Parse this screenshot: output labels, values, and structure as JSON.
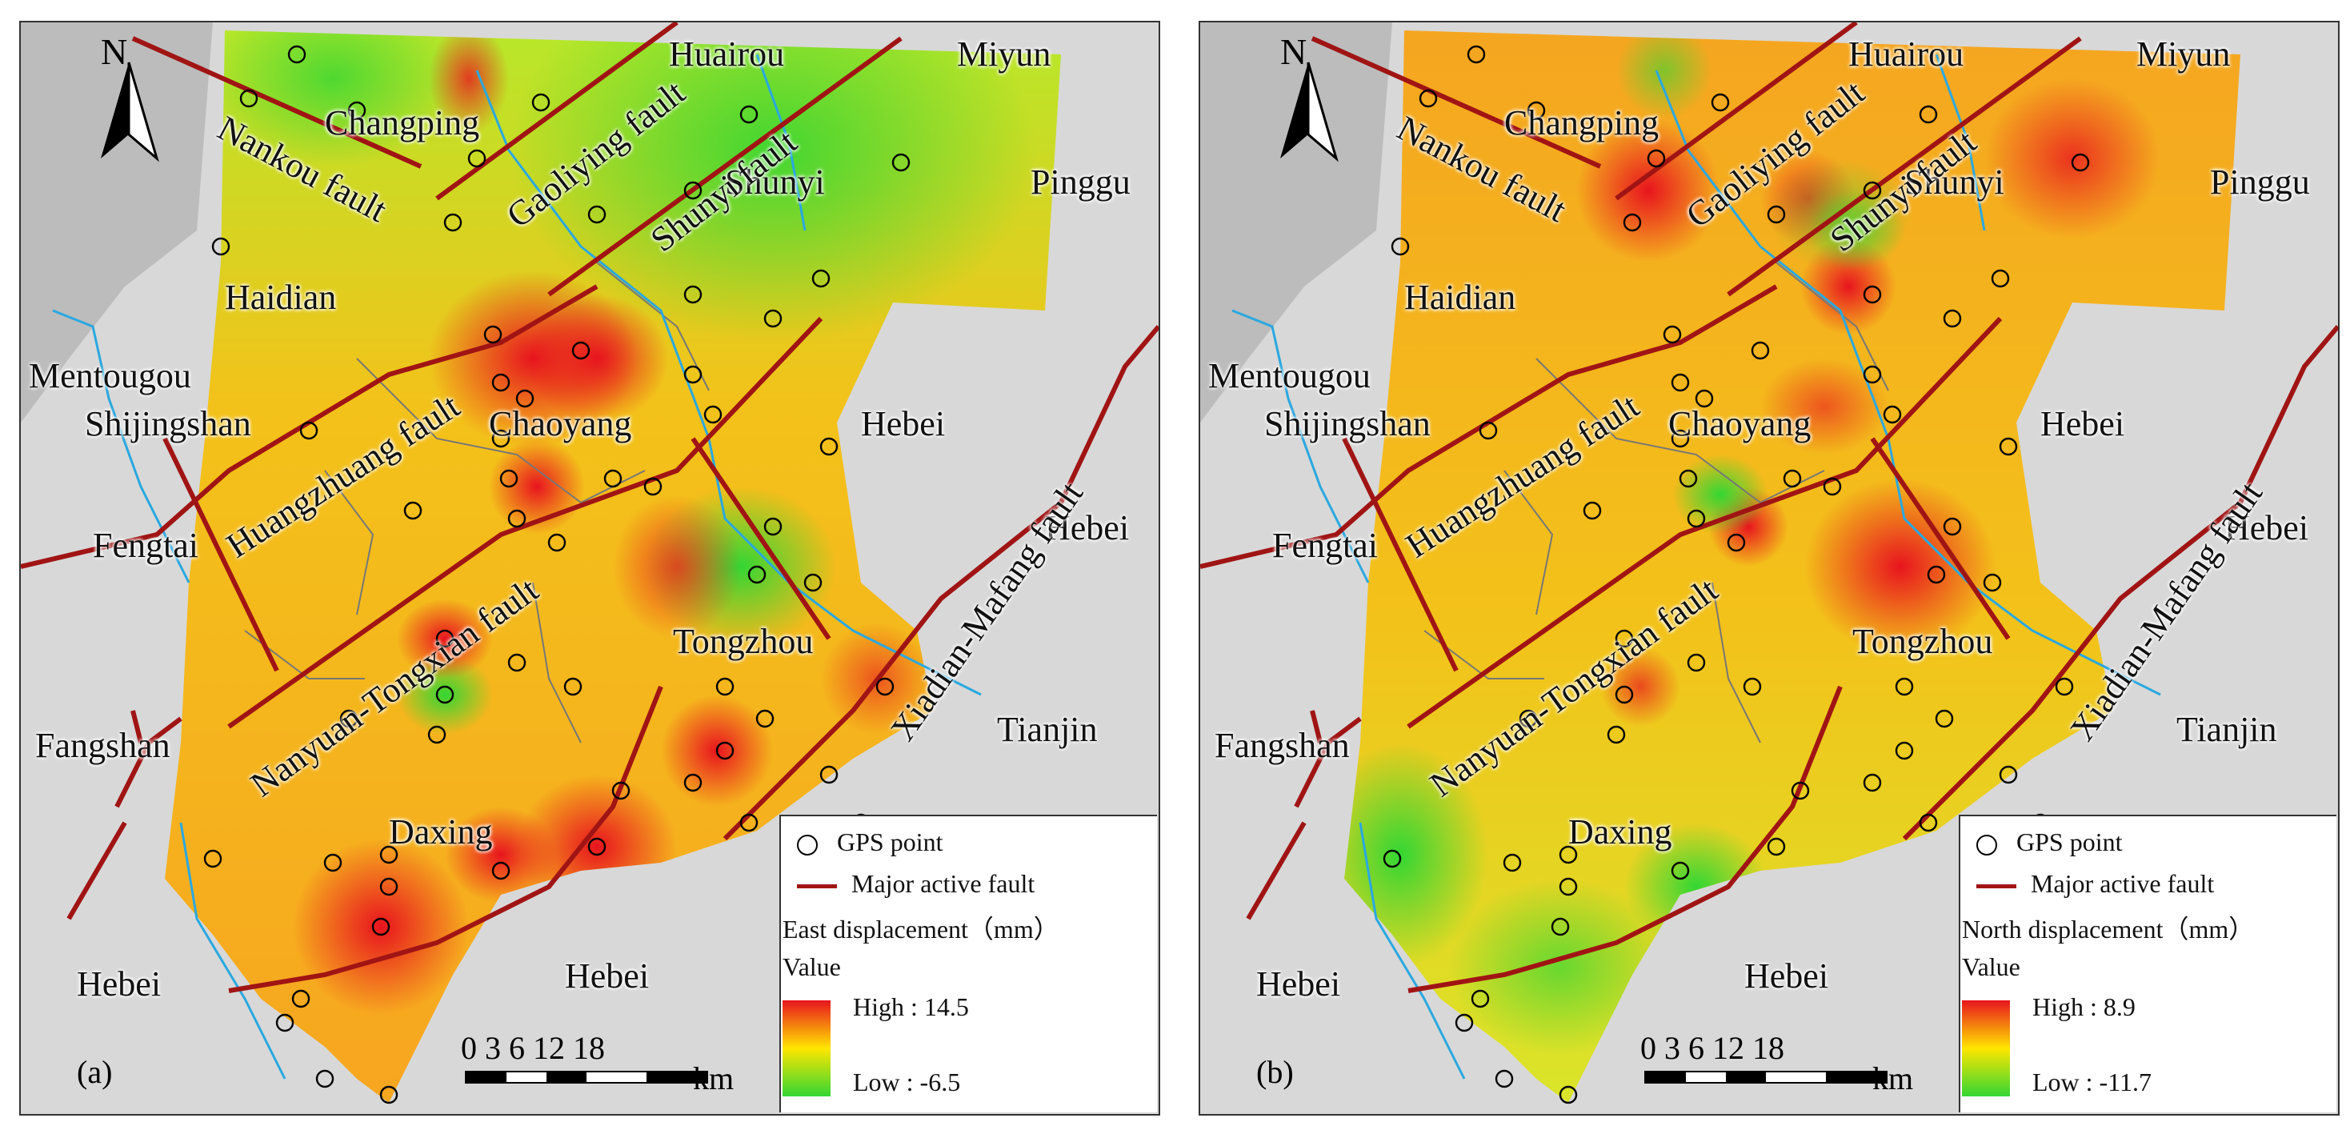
{
  "panels": [
    {
      "id": "a",
      "label": "(a)",
      "legend": {
        "gps": "GPS point",
        "fault": "Major active fault",
        "field": "East displacement（mm）",
        "value": "Value",
        "high": "High : 14.5",
        "low": "Low : -6.5"
      },
      "colors": {
        "high": "#e8141e",
        "mid": "#ffe600",
        "low": "#33d633"
      }
    },
    {
      "id": "b",
      "label": "(b)",
      "legend": {
        "gps": "GPS point",
        "fault": "Major active fault",
        "field": "North displacement（mm）",
        "value": "Value",
        "high": "High : 8.9",
        "low": "Low : -11.7"
      },
      "colors": {
        "high": "#e8141e",
        "mid": "#ffe600",
        "low": "#33d633"
      }
    }
  ],
  "places": {
    "changping": "Changping",
    "huairou": "Huairou",
    "miyun": "Miyun",
    "shunyi": "Shunyi",
    "pinggu": "Pinggu",
    "haidian": "Haidian",
    "mentougou": "Mentougou",
    "shijingshan": "Shijingshan",
    "chaoyang": "Chaoyang",
    "hebei_east": "Hebei",
    "hebei_right": "Hebei",
    "fengtai": "Fengtai",
    "tongzhou": "Tongzhou",
    "tianjin": "Tianjin",
    "fangshan": "Fangshan",
    "daxing": "Daxing",
    "hebei_sw": "Hebei",
    "hebei_s": "Hebei"
  },
  "faults": {
    "nankou": "Nankou fault",
    "gaoliying": "Gaoliying fault",
    "shunyi": "Shunyi fault",
    "huangzhuang": "Huangzhuang fault",
    "nanyuan": "Nanyuan-Tongxian fault",
    "xiadian": "Xiadian-Mafang fault"
  },
  "north_arrow": "N",
  "scale_bar": {
    "ticks": "0 3 6    12    18",
    "unit": "km"
  }
}
